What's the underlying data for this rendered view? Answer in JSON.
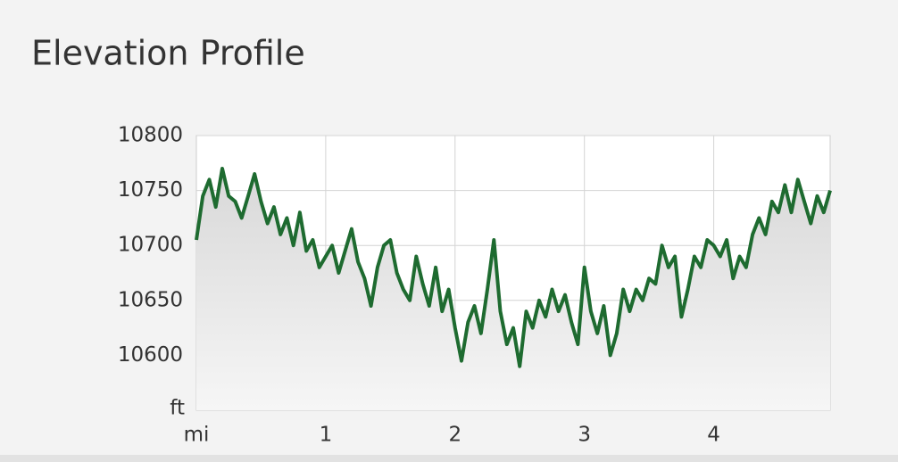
{
  "chart_data": {
    "type": "line",
    "title": "Elevation Profile",
    "x_label": "mi",
    "y_label": "ft",
    "x": [
      0,
      0.05,
      0.1,
      0.15,
      0.2,
      0.25,
      0.3,
      0.35,
      0.4,
      0.45,
      0.5,
      0.55,
      0.6,
      0.65,
      0.7,
      0.75,
      0.8,
      0.85,
      0.9,
      0.95,
      1,
      1.05,
      1.1,
      1.15,
      1.2,
      1.25,
      1.3,
      1.35,
      1.4,
      1.45,
      1.5,
      1.55,
      1.6,
      1.65,
      1.7,
      1.75,
      1.8,
      1.85,
      1.9,
      1.95,
      2,
      2.05,
      2.1,
      2.15,
      2.2,
      2.25,
      2.3,
      2.35,
      2.4,
      2.45,
      2.5,
      2.55,
      2.6,
      2.65,
      2.7,
      2.75,
      2.8,
      2.85,
      2.9,
      2.95,
      3,
      3.05,
      3.1,
      3.15,
      3.2,
      3.25,
      3.3,
      3.35,
      3.4,
      3.45,
      3.5,
      3.55,
      3.6,
      3.65,
      3.7,
      3.75,
      3.8,
      3.85,
      3.9,
      3.95,
      4,
      4.05,
      4.1,
      4.15,
      4.2,
      4.25,
      4.3,
      4.35,
      4.4,
      4.45,
      4.5,
      4.55,
      4.6,
      4.65,
      4.7,
      4.75,
      4.8,
      4.85,
      4.9
    ],
    "values": [
      10705,
      10745,
      10760,
      10735,
      10770,
      10745,
      10740,
      10725,
      10745,
      10765,
      10740,
      10720,
      10735,
      10710,
      10725,
      10700,
      10730,
      10695,
      10705,
      10680,
      10690,
      10700,
      10675,
      10695,
      10715,
      10685,
      10670,
      10645,
      10680,
      10700,
      10705,
      10675,
      10660,
      10650,
      10690,
      10665,
      10645,
      10680,
      10640,
      10660,
      10625,
      10595,
      10630,
      10645,
      10620,
      10660,
      10705,
      10640,
      10610,
      10625,
      10590,
      10640,
      10625,
      10650,
      10635,
      10660,
      10640,
      10655,
      10630,
      10610,
      10680,
      10640,
      10620,
      10645,
      10600,
      10620,
      10660,
      10640,
      10660,
      10650,
      10670,
      10665,
      10700,
      10680,
      10690,
      10635,
      10660,
      10690,
      10680,
      10705,
      10700,
      10690,
      10705,
      10670,
      10690,
      10680,
      10710,
      10725,
      10710,
      10740,
      10730,
      10755,
      10730,
      10760,
      10740,
      10720,
      10745,
      10730,
      10750
    ],
    "color": "#1e6b30",
    "xlim": [
      0,
      4.9
    ],
    "xticks": [
      1,
      2,
      3,
      4
    ],
    "ylim": [
      10550,
      10800
    ],
    "yticks": [
      10600,
      10650,
      10700,
      10750,
      10800
    ],
    "grid": true
  }
}
